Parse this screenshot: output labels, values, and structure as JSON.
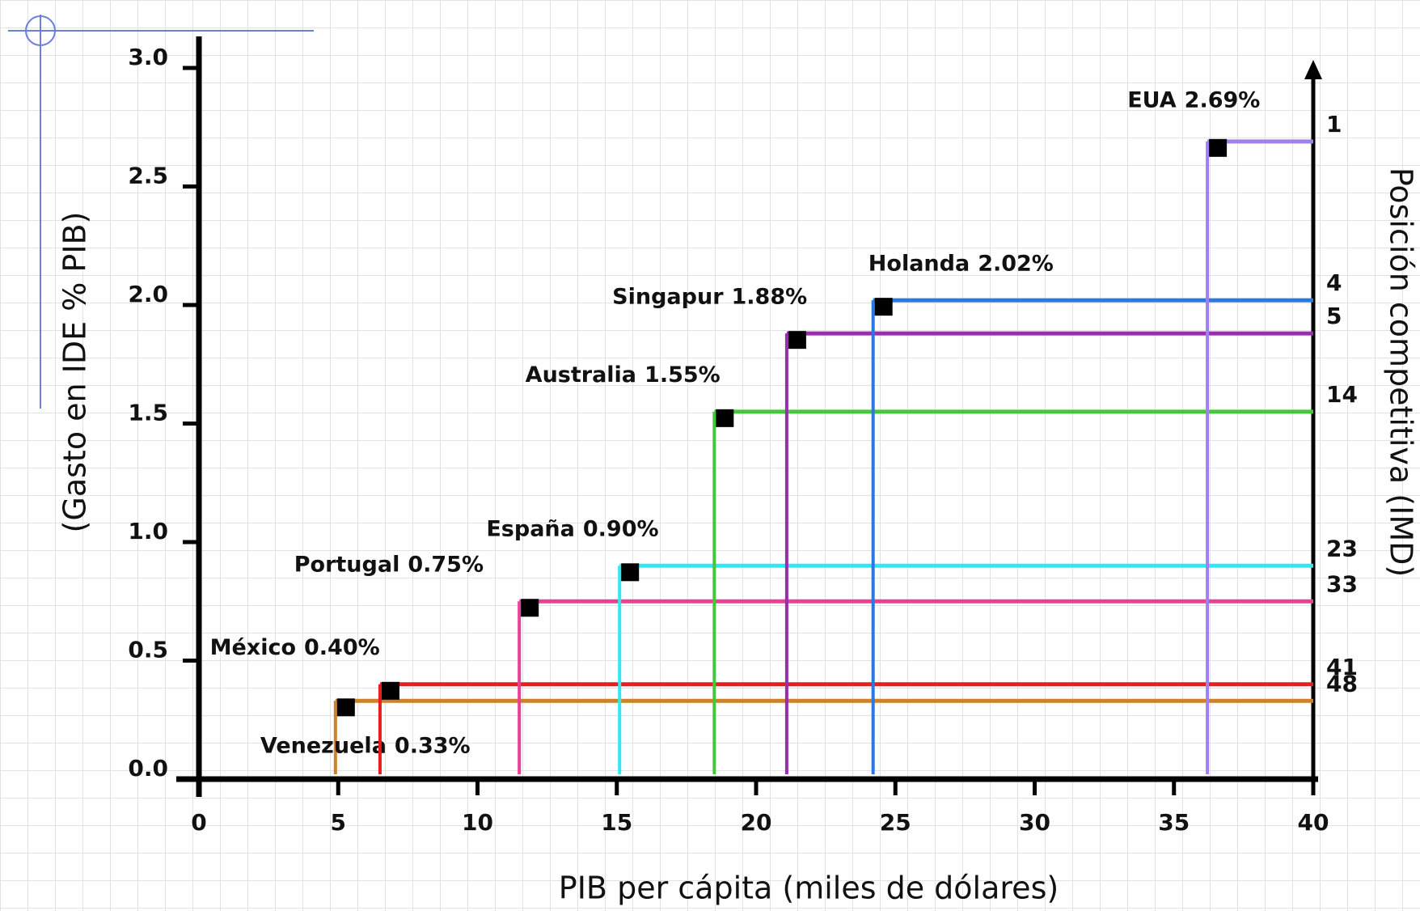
{
  "chart_data": {
    "type": "scatter",
    "x_label": "PIB per cápita (miles de dólares)",
    "y_label": "(Gasto en IDE % PIB)",
    "y2_label": "Posición competitiva (IMD)",
    "xlim": [
      0,
      40
    ],
    "xticks": [
      0,
      5,
      10,
      15,
      20,
      25,
      30,
      35,
      40
    ],
    "ylim": [
      0,
      3
    ],
    "yticks": [
      {
        "value": 0,
        "label": "0.0"
      },
      0.5,
      {
        "value": 1,
        "label": "1.0"
      },
      1.5,
      {
        "value": 2,
        "label": "2.0"
      },
      2.5,
      {
        "value": 3,
        "label": "3.0"
      }
    ],
    "series": [
      {
        "name": "Venezuela",
        "color": "#d0802a",
        "x": [
          4.9
        ],
        "values": [
          0.33
        ],
        "value_labels": [
          "0.33%"
        ],
        "rank": 48
      },
      {
        "name": "México",
        "color": "#e81e1e",
        "x": [
          6.5
        ],
        "values": [
          0.4
        ],
        "value_labels": [
          "0.40%"
        ],
        "rank": 41
      },
      {
        "name": "Portugal",
        "color": "#ec4096",
        "x": [
          11.5
        ],
        "values": [
          0.75
        ],
        "value_labels": [
          "0.75%"
        ],
        "rank": 33
      },
      {
        "name": "España",
        "color": "#30e8f0",
        "x": [
          15.1
        ],
        "values": [
          0.9
        ],
        "value_labels": [
          "0.90%"
        ],
        "rank": 23
      },
      {
        "name": "Australia",
        "color": "#44c83a",
        "x": [
          18.5
        ],
        "values": [
          1.55
        ],
        "value_labels": [
          "1.55%"
        ],
        "rank": 14
      },
      {
        "name": "Singapur",
        "color": "#9a2cb0",
        "x": [
          21.1
        ],
        "values": [
          1.88
        ],
        "value_labels": [
          "1.88%"
        ],
        "rank": 5
      },
      {
        "name": "Holanda",
        "color": "#2c78e0",
        "x": [
          24.2
        ],
        "values": [
          2.02
        ],
        "value_labels": [
          "2.02%"
        ],
        "rank": 4
      },
      {
        "name": "EUA",
        "color": "#a080ec",
        "x": [
          36.2
        ],
        "values": [
          2.69
        ],
        "value_labels": [
          "2.69%"
        ],
        "rank": 1
      }
    ]
  }
}
